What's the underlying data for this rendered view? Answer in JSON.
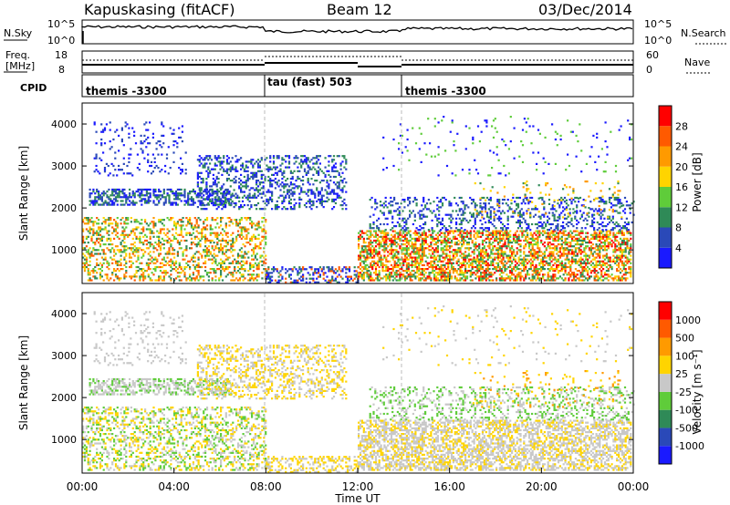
{
  "header": {
    "station": "Kapuskasing (fitACF)",
    "beam": "Beam 12",
    "date": "03/Dec/2014"
  },
  "strips": {
    "nsky_label": "N.Sky",
    "nsky_ticks": [
      "10^5",
      "10^0"
    ],
    "nsearch_label": "N.Search",
    "nsearch_ticks": [
      "10^5",
      "10^0"
    ],
    "freq_label": "Freq.",
    "freq_unit": "[MHz]",
    "freq_ticks": [
      "18",
      "8"
    ],
    "nave_label": "Nave",
    "nave_ticks": [
      "60",
      "0"
    ],
    "cpid_label": "CPID",
    "cpid_segments": [
      {
        "name": "themis -3300",
        "start": "00:00"
      },
      {
        "name": "tau (fast) 503",
        "start": "08:00"
      },
      {
        "name": "themis -3300",
        "start": "14:00"
      }
    ]
  },
  "chart_data": [
    {
      "type": "heatmap",
      "name": "power",
      "ylabel": "Slant Range [km]",
      "ylim": [
        200,
        4500
      ],
      "yticks": [
        "1000",
        "2000",
        "3000",
        "4000"
      ],
      "colorbar_label": "Power [dB]",
      "colorbar_ticks": [
        "4",
        "8",
        "12",
        "16",
        "20",
        "24",
        "28"
      ],
      "colorbar_colors": [
        "#1a1aff",
        "#2a49b8",
        "#2f8a57",
        "#5fcc3a",
        "#ffd400",
        "#ff9a00",
        "#ff5a00",
        "#ff0000"
      ]
    },
    {
      "type": "heatmap",
      "name": "velocity",
      "ylabel": "Slant Range [km]",
      "ylim": [
        200,
        4500
      ],
      "yticks": [
        "1000",
        "2000",
        "3000",
        "4000"
      ],
      "colorbar_label": "Velocity [m s^-1]",
      "colorbar_ticks": [
        "1000",
        "500",
        "100",
        "25",
        "-25",
        "-100",
        "-500",
        "-1000"
      ],
      "colorbar_colors": [
        "#1a1aff",
        "#2a49b8",
        "#2f8a57",
        "#5fcc3a",
        "#c8c8c8",
        "#ffd400",
        "#ff9a00",
        "#ff5a00",
        "#ff0000"
      ]
    }
  ],
  "xaxis": {
    "label": "Time UT",
    "ticks": [
      "00:00",
      "04:00",
      "08:00",
      "12:00",
      "16:00",
      "20:00",
      "00:00"
    ]
  }
}
